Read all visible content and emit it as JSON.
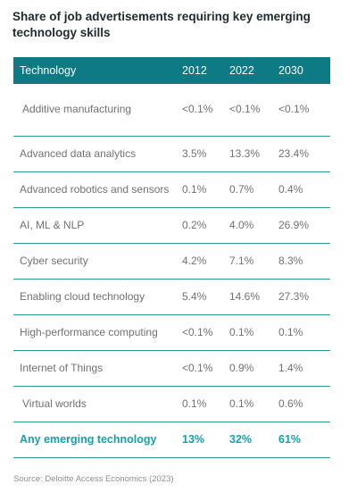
{
  "chart_data": {
    "type": "table",
    "title": "Share of job advertisements requiring key emerging technology skills",
    "columns": [
      "Technology",
      "2012",
      "2022",
      "2030"
    ],
    "rows": [
      {
        "technology": "Additive manufacturing",
        "values": [
          "<0.1%",
          "<0.1%",
          "<0.1%"
        ]
      },
      {
        "technology": "Advanced data analytics",
        "values": [
          "3.5%",
          "13.3%",
          "23.4%"
        ]
      },
      {
        "technology": "Advanced robotics and sensors",
        "values": [
          "0.1%",
          "0.7%",
          "0.4%"
        ]
      },
      {
        "technology": "AI, ML & NLP",
        "values": [
          "0.2%",
          "4.0%",
          "26.9%"
        ]
      },
      {
        "technology": "Cyber security",
        "values": [
          "4.2%",
          "7.1%",
          "8.3%"
        ]
      },
      {
        "technology": "Enabling cloud technology",
        "values": [
          "5.4%",
          "14.6%",
          "27.3%"
        ]
      },
      {
        "technology": "High-performance computing",
        "values": [
          "<0.1%",
          "0.1%",
          "0.1%"
        ]
      },
      {
        "technology": "Internet of Things",
        "values": [
          "<0.1%",
          "0.9%",
          "1.4%"
        ]
      },
      {
        "technology": "Virtual worlds",
        "values": [
          "0.1%",
          "0.1%",
          "0.6%"
        ]
      }
    ],
    "total": {
      "technology": "Any emerging technology",
      "values": [
        "13%",
        "32%",
        "61%"
      ]
    },
    "source": "Source: Deloitte Access Economics (2023)",
    "colors": {
      "header_background": "#0d7a84",
      "row_divider": "#2a9aa3",
      "total_text": "#13a2aa"
    }
  }
}
